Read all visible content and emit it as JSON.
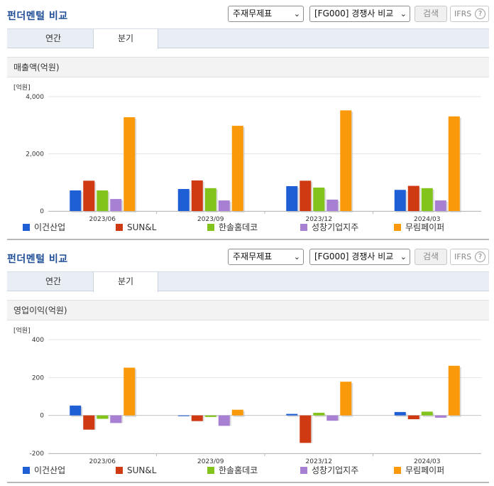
{
  "panels": [
    {
      "title": "펀더멘털 비교",
      "select_statement": "주재무제표",
      "select_compare": "[FG000] 경쟁사 비교",
      "search_label": "검색",
      "ifrs_label": "IFRS",
      "help_glyph": "?",
      "tabs": [
        {
          "label": "연간"
        },
        {
          "label": "분기"
        }
      ],
      "active_tab": "분기",
      "metric_label": "매출액(억원)"
    },
    {
      "title": "펀더멘털 비교",
      "select_statement": "주재무제표",
      "select_compare": "[FG000] 경쟁사 비교",
      "search_label": "검색",
      "ifrs_label": "IFRS",
      "help_glyph": "?",
      "tabs": [
        {
          "label": "연간"
        },
        {
          "label": "분기"
        }
      ],
      "active_tab": "분기",
      "metric_label": "영업이익(억원)"
    }
  ],
  "chart_data": [
    {
      "type": "bar",
      "unit_label": "[억원]",
      "categories": [
        "2023/06",
        "2023/09",
        "2023/12",
        "2024/03"
      ],
      "ylim": [
        0,
        4000
      ],
      "yticks": [
        0,
        2000,
        4000
      ],
      "ytick_labels": [
        "0",
        "2,000",
        "4,000"
      ],
      "grid": true,
      "legend_position": "bottom",
      "series": [
        {
          "name": "이건산업",
          "color": "#1f5fd6",
          "values": [
            720,
            770,
            870,
            740
          ]
        },
        {
          "name": "SUN&L",
          "color": "#d03a12",
          "values": [
            1060,
            1070,
            1060,
            880
          ]
        },
        {
          "name": "한솔홈데코",
          "color": "#82c31c",
          "values": [
            720,
            800,
            820,
            800
          ]
        },
        {
          "name": "성창기업지주",
          "color": "#a77fd3",
          "values": [
            420,
            370,
            400,
            370
          ]
        },
        {
          "name": "무림페이퍼",
          "color": "#fa9a0a",
          "values": [
            3280,
            2980,
            3520,
            3310
          ]
        }
      ]
    },
    {
      "type": "bar",
      "unit_label": "[억원]",
      "categories": [
        "2023/06",
        "2023/09",
        "2023/12",
        "2024/03"
      ],
      "ylim": [
        -200,
        400
      ],
      "yticks": [
        -200,
        0,
        200,
        400
      ],
      "ytick_labels": [
        "-200",
        "0",
        "200",
        "400"
      ],
      "grid": true,
      "legend_position": "bottom",
      "series": [
        {
          "name": "이건산업",
          "color": "#1f5fd6",
          "values": [
            52,
            -2,
            8,
            18
          ]
        },
        {
          "name": "SUN&L",
          "color": "#d03a12",
          "values": [
            -75,
            -30,
            -145,
            -20
          ]
        },
        {
          "name": "한솔홈데코",
          "color": "#82c31c",
          "values": [
            -18,
            -8,
            14,
            20
          ]
        },
        {
          "name": "성창기업지주",
          "color": "#a77fd3",
          "values": [
            -40,
            -55,
            -28,
            -12
          ]
        },
        {
          "name": "무림페이퍼",
          "color": "#fa9a0a",
          "values": [
            252,
            30,
            178,
            262
          ]
        }
      ]
    }
  ]
}
